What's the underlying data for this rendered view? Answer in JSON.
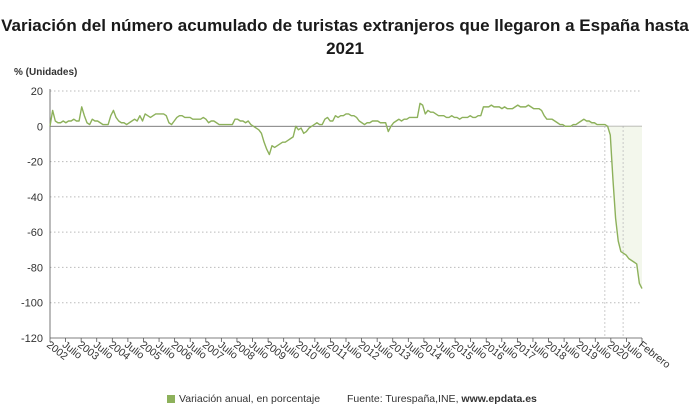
{
  "title_line1": "Variación del número acumulado de turistas extranjeros que llegaron a España hasta",
  "title_line2": "2021",
  "legend_label": "Variación anual, en porcentaje",
  "source_label": "Fuente: Turespaña,INE,",
  "source_site": "www.epdata.es",
  "colors": {
    "line": "#8db15b",
    "area": "#f3f7ec",
    "grid": "#bbbbbb"
  },
  "chart_data": {
    "type": "line",
    "title": "Variación del número acumulado de turistas extranjeros que llegaron a España hasta 2021",
    "ylabel": "% (Unidades)",
    "ylim": [
      -120,
      20
    ],
    "yticks": [
      20,
      0,
      -20,
      -40,
      -60,
      -80,
      -100,
      -120
    ],
    "grid": true,
    "legend_position": "bottom",
    "x_tick_labels": [
      "2002",
      "Julio",
      "2003",
      "Julio",
      "2004",
      "Julio",
      "2005",
      "Julio",
      "2006",
      "Julio",
      "2007",
      "Julio",
      "2008",
      "Julio",
      "2009",
      "Julio",
      "2010",
      "Julio",
      "2011",
      "Julio",
      "2012",
      "Julio",
      "2013",
      "Julio",
      "2014",
      "Julio",
      "2015",
      "Julio",
      "2016",
      "Julio",
      "2017",
      "Julio",
      "2018",
      "Julio",
      "2019",
      "Julio",
      "2020",
      "Julio",
      "Febrero"
    ],
    "series": [
      {
        "name": "Variación anual, en porcentaje",
        "values": [
          0,
          9,
          3,
          2,
          2,
          3,
          2,
          3,
          3,
          4,
          3,
          3,
          11,
          6,
          2,
          1,
          4,
          3,
          3,
          2,
          1,
          1,
          1,
          6,
          9,
          5,
          3,
          2,
          2,
          1,
          2,
          3,
          4,
          3,
          6,
          3,
          7,
          6,
          5,
          6,
          7,
          7,
          7,
          7,
          6,
          2,
          1,
          3,
          5,
          6,
          6,
          5,
          5,
          5,
          4,
          4,
          4,
          4,
          5,
          4,
          2,
          3,
          3,
          2,
          1,
          1,
          1,
          1,
          1,
          1,
          4,
          4,
          3,
          3,
          2,
          3,
          1,
          0,
          -1,
          -2,
          -4,
          -9,
          -13,
          -16,
          -11,
          -12,
          -11,
          -10,
          -9,
          -9,
          -8,
          -7,
          -6,
          0,
          -2,
          -1,
          -4,
          -3,
          -1,
          0,
          1,
          2,
          1,
          1,
          4,
          5,
          3,
          3,
          6,
          5,
          6,
          6,
          7,
          7,
          6,
          6,
          5,
          3,
          2,
          1,
          2,
          2,
          3,
          3,
          3,
          2,
          2,
          2,
          -3,
          0,
          2,
          3,
          4,
          3,
          4,
          4,
          5,
          5,
          5,
          5,
          13,
          12,
          7,
          9,
          8,
          8,
          7,
          6,
          6,
          6,
          5,
          5,
          6,
          5,
          5,
          4,
          5,
          5,
          5,
          6,
          5,
          5,
          6,
          6,
          11,
          11,
          11,
          12,
          11,
          11,
          11,
          10,
          11,
          10,
          10,
          10,
          11,
          12,
          11,
          11,
          11,
          12,
          11,
          10,
          10,
          10,
          9,
          6,
          4,
          4,
          4,
          3,
          2,
          1,
          1,
          0,
          0,
          0,
          1,
          1,
          2,
          3,
          4,
          3,
          3,
          2,
          2,
          1,
          1,
          1,
          1,
          0,
          -5,
          -30,
          -52,
          -65,
          -71,
          -72,
          -73,
          -75,
          -76,
          -77,
          -78,
          -89,
          -92
        ]
      }
    ]
  }
}
